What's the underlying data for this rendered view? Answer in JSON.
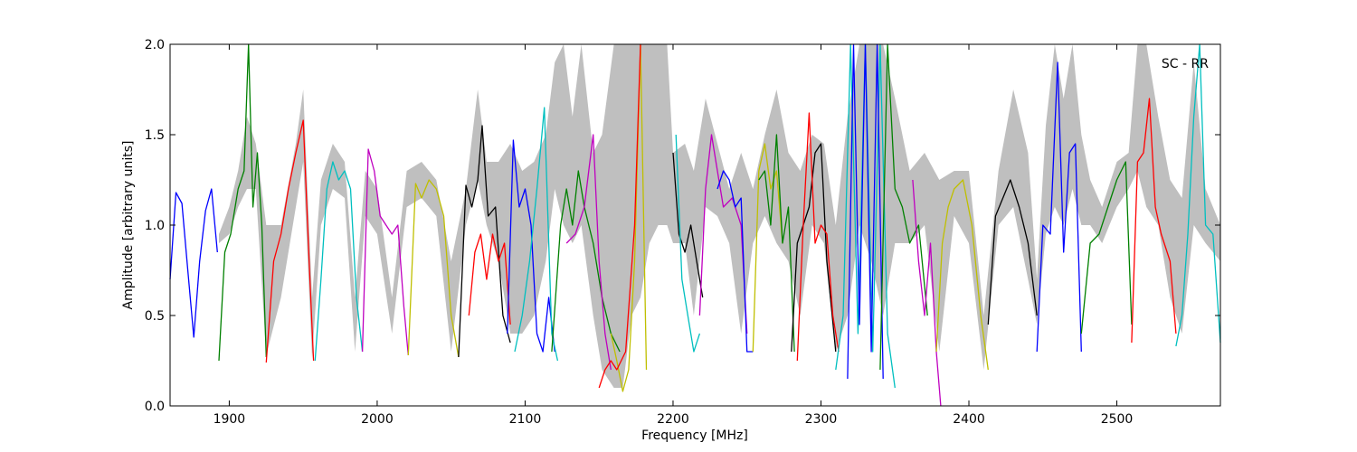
{
  "chart_data": {
    "type": "line",
    "title": "",
    "annotation": "SC - RR",
    "xlabel": "Frequency [MHz]",
    "ylabel": "Amplitude [arbitrary units]",
    "xlim": [
      1860,
      2570
    ],
    "ylim": [
      0.0,
      2.0
    ],
    "xticks": [
      1900,
      2000,
      2100,
      2200,
      2300,
      2400,
      2500
    ],
    "xtick_labels": [
      "1900",
      "2000",
      "2100",
      "2200",
      "2300",
      "2400",
      "2500"
    ],
    "yticks": [
      0.0,
      0.5,
      1.0,
      1.5,
      2.0
    ],
    "ytick_labels": [
      "0.0",
      "0.5",
      "1.0",
      "1.5",
      "2.0"
    ],
    "grid": false,
    "legend": "none",
    "envelope": {
      "color": "#bfbfbf",
      "x": [
        1893,
        1900,
        1906,
        1912,
        1918,
        1925,
        1935,
        1945,
        1950,
        1956,
        1962,
        1970,
        1978,
        1985,
        1992,
        2000,
        2010,
        2020,
        2030,
        2040,
        2050,
        2060,
        2068,
        2074,
        2082,
        2090,
        2098,
        2106,
        2114,
        2120,
        2126,
        2132,
        2138,
        2146,
        2152,
        2160,
        2166,
        2172,
        2178,
        2184,
        2190,
        2196,
        2200,
        2208,
        2214,
        2222,
        2230,
        2238,
        2246,
        2254,
        2262,
        2270,
        2278,
        2286,
        2294,
        2302,
        2310,
        2318,
        2326,
        2334,
        2342,
        2350,
        2360,
        2370,
        2380,
        2390,
        2400,
        2410,
        2420,
        2430,
        2440,
        2446,
        2452,
        2458,
        2464,
        2470,
        2476,
        2482,
        2490,
        2500,
        2508,
        2514,
        2520,
        2528,
        2536,
        2544,
        2552,
        2560,
        2570
      ],
      "upper": [
        0.95,
        1.1,
        1.3,
        1.6,
        1.45,
        1.0,
        1.0,
        1.45,
        1.75,
        0.6,
        1.25,
        1.45,
        1.35,
        0.6,
        1.3,
        1.2,
        0.6,
        1.3,
        1.35,
        1.25,
        0.8,
        1.2,
        1.75,
        1.35,
        1.35,
        1.45,
        1.3,
        1.35,
        1.5,
        1.9,
        2.0,
        1.6,
        2.0,
        1.4,
        1.5,
        2.0,
        2.0,
        2.0,
        2.0,
        2.0,
        2.0,
        2.0,
        1.4,
        1.45,
        1.3,
        1.7,
        1.45,
        1.2,
        1.4,
        1.2,
        1.5,
        1.75,
        1.4,
        1.3,
        1.5,
        1.45,
        1.0,
        1.6,
        2.0,
        2.0,
        2.0,
        1.7,
        1.3,
        1.4,
        1.25,
        1.3,
        1.3,
        0.5,
        1.3,
        1.75,
        1.4,
        0.7,
        1.55,
        2.0,
        1.7,
        2.0,
        1.5,
        1.25,
        1.1,
        1.35,
        1.4,
        2.0,
        2.0,
        1.6,
        1.25,
        1.15,
        1.9,
        1.2,
        1.0
      ],
      "lower": [
        0.9,
        0.95,
        1.1,
        1.2,
        1.2,
        0.28,
        0.6,
        1.1,
        1.35,
        0.26,
        1.0,
        1.2,
        1.15,
        0.3,
        1.05,
        0.95,
        0.4,
        1.1,
        1.15,
        1.05,
        0.3,
        1.0,
        1.25,
        1.0,
        0.8,
        0.4,
        0.4,
        0.5,
        0.8,
        1.2,
        1.0,
        0.9,
        1.0,
        0.5,
        0.2,
        0.1,
        0.1,
        0.5,
        0.6,
        0.9,
        1.0,
        1.0,
        0.9,
        0.9,
        0.5,
        1.1,
        1.05,
        0.9,
        0.4,
        0.9,
        1.05,
        0.9,
        0.8,
        0.5,
        1.0,
        0.9,
        0.3,
        0.5,
        1.0,
        0.8,
        0.5,
        0.9,
        0.9,
        1.0,
        0.3,
        1.05,
        0.9,
        0.2,
        1.0,
        1.1,
        0.7,
        0.45,
        0.95,
        1.1,
        1.0,
        1.2,
        1.0,
        1.0,
        0.9,
        1.1,
        1.2,
        1.3,
        1.1,
        1.0,
        0.6,
        0.4,
        1.0,
        0.9,
        0.8
      ]
    },
    "series": [
      {
        "color": "#0000ff",
        "x": [
          1860,
          1864,
          1868,
          1872,
          1876,
          1880,
          1884,
          1888,
          1892
        ],
        "y": [
          0.7,
          1.18,
          1.12,
          0.75,
          0.38,
          0.8,
          1.08,
          1.2,
          0.85
        ]
      },
      {
        "color": "#008000",
        "x": [
          1893,
          1897,
          1901,
          1906,
          1910,
          1913,
          1916,
          1919,
          1922,
          1925
        ],
        "y": [
          0.25,
          0.85,
          0.95,
          1.2,
          1.3,
          2.0,
          1.1,
          1.4,
          1.0,
          0.27
        ]
      },
      {
        "color": "#ff0000",
        "x": [
          1925,
          1930,
          1935,
          1940,
          1945,
          1950,
          1954,
          1957
        ],
        "y": [
          0.24,
          0.8,
          0.95,
          1.2,
          1.4,
          1.58,
          0.8,
          0.25
        ]
      },
      {
        "color": "#00bfbf",
        "x": [
          1958,
          1962,
          1966,
          1970,
          1974,
          1978,
          1982,
          1986,
          1990
        ],
        "y": [
          0.25,
          0.7,
          1.2,
          1.35,
          1.25,
          1.3,
          1.2,
          0.6,
          0.3
        ]
      },
      {
        "color": "#bf00bf",
        "x": [
          1990,
          1994,
          1998,
          2002,
          2006,
          2010,
          2014,
          2018,
          2021
        ],
        "y": [
          0.3,
          1.42,
          1.3,
          1.05,
          1.0,
          0.95,
          1.0,
          0.55,
          0.28
        ]
      },
      {
        "color": "#bfbf00",
        "x": [
          2021,
          2026,
          2030,
          2035,
          2040,
          2045,
          2050,
          2055
        ],
        "y": [
          0.28,
          1.23,
          1.15,
          1.25,
          1.2,
          1.05,
          0.5,
          0.27
        ]
      },
      {
        "color": "#000000",
        "x": [
          2055,
          2060,
          2064,
          2068,
          2071,
          2075,
          2080,
          2085,
          2090
        ],
        "y": [
          0.27,
          1.22,
          1.1,
          1.25,
          1.55,
          1.05,
          1.1,
          0.5,
          0.35
        ]
      },
      {
        "color": "#ff0000",
        "x": [
          2062,
          2066,
          2070,
          2074,
          2078,
          2082,
          2086,
          2090
        ],
        "y": [
          0.5,
          0.85,
          0.95,
          0.7,
          0.95,
          0.8,
          0.9,
          0.45
        ]
      },
      {
        "color": "#0000ff",
        "x": [
          2088,
          2092,
          2096,
          2100,
          2104,
          2108,
          2112,
          2116,
          2120
        ],
        "y": [
          0.4,
          1.47,
          1.1,
          1.2,
          1.0,
          0.4,
          0.3,
          0.6,
          0.3
        ]
      },
      {
        "color": "#00bfbf",
        "x": [
          2093,
          2098,
          2103,
          2108,
          2113,
          2118,
          2122
        ],
        "y": [
          0.3,
          0.5,
          0.8,
          1.2,
          1.65,
          0.4,
          0.25
        ]
      },
      {
        "color": "#008000",
        "x": [
          2118,
          2124,
          2128,
          2132,
          2136,
          2140,
          2146,
          2152,
          2158,
          2164
        ],
        "y": [
          0.3,
          1.0,
          1.2,
          1.0,
          1.3,
          1.1,
          0.9,
          0.6,
          0.4,
          0.3
        ]
      },
      {
        "color": "#bf00bf",
        "x": [
          2128,
          2134,
          2140,
          2146,
          2150,
          2154,
          2158
        ],
        "y": [
          0.9,
          0.95,
          1.1,
          1.5,
          0.8,
          0.4,
          0.2
        ]
      },
      {
        "color": "#bfbf00",
        "x": [
          2158,
          2162,
          2166,
          2170,
          2174,
          2178,
          2182
        ],
        "y": [
          0.4,
          0.25,
          0.08,
          0.2,
          0.8,
          2.0,
          0.2
        ]
      },
      {
        "color": "#ff0000",
        "x": [
          2150,
          2154,
          2158,
          2162,
          2168,
          2174,
          2178
        ],
        "y": [
          0.1,
          0.2,
          0.25,
          0.2,
          0.3,
          1.0,
          2.0
        ]
      },
      {
        "color": "#000000",
        "x": [
          2200,
          2204,
          2208,
          2212,
          2216,
          2220
        ],
        "y": [
          1.4,
          0.95,
          0.85,
          1.0,
          0.8,
          0.6
        ]
      },
      {
        "color": "#00bfbf",
        "x": [
          2202,
          2206,
          2210,
          2214,
          2218
        ],
        "y": [
          1.5,
          0.7,
          0.5,
          0.3,
          0.4
        ]
      },
      {
        "color": "#bf00bf",
        "x": [
          2218,
          2222,
          2226,
          2230,
          2234,
          2240,
          2246,
          2250
        ],
        "y": [
          0.5,
          1.2,
          1.5,
          1.3,
          1.1,
          1.15,
          1.0,
          0.4
        ]
      },
      {
        "color": "#0000ff",
        "x": [
          2230,
          2234,
          2238,
          2242,
          2246,
          2250,
          2254
        ],
        "y": [
          1.2,
          1.3,
          1.25,
          1.1,
          1.15,
          0.3,
          0.3
        ]
      },
      {
        "color": "#bfbf00",
        "x": [
          2254,
          2258,
          2262,
          2266,
          2270,
          2274
        ],
        "y": [
          0.3,
          1.3,
          1.45,
          1.2,
          1.3,
          0.9
        ]
      },
      {
        "color": "#008000",
        "x": [
          2258,
          2262,
          2266,
          2270,
          2274,
          2278,
          2282
        ],
        "y": [
          1.25,
          1.3,
          1.0,
          1.5,
          0.9,
          1.1,
          0.3
        ]
      },
      {
        "color": "#000000",
        "x": [
          2280,
          2284,
          2288,
          2292,
          2296,
          2300,
          2304,
          2310
        ],
        "y": [
          0.3,
          0.9,
          1.0,
          1.1,
          1.4,
          1.45,
          0.8,
          0.3
        ]
      },
      {
        "color": "#ff0000",
        "x": [
          2284,
          2288,
          2292,
          2296,
          2300,
          2304,
          2308,
          2312
        ],
        "y": [
          0.25,
          1.0,
          1.62,
          0.9,
          1.0,
          0.95,
          0.5,
          0.3
        ]
      },
      {
        "color": "#00bfbf",
        "x": [
          2310,
          2315,
          2320,
          2325,
          2330,
          2335,
          2340,
          2345,
          2350
        ],
        "y": [
          0.2,
          0.5,
          2.0,
          0.4,
          2.0,
          0.3,
          2.0,
          0.4,
          0.1
        ]
      },
      {
        "color": "#0000ff",
        "x": [
          2318,
          2322,
          2326,
          2330,
          2334,
          2338,
          2342
        ],
        "y": [
          0.15,
          2.0,
          0.45,
          2.0,
          0.3,
          2.0,
          0.15
        ]
      },
      {
        "color": "#008000",
        "x": [
          2340,
          2345,
          2350,
          2355,
          2360,
          2366,
          2372
        ],
        "y": [
          0.2,
          2.0,
          1.2,
          1.1,
          0.9,
          1.0,
          0.5
        ]
      },
      {
        "color": "#bf00bf",
        "x": [
          2362,
          2366,
          2370,
          2374,
          2378,
          2381
        ],
        "y": [
          1.25,
          0.8,
          0.5,
          0.9,
          0.3,
          0.0
        ]
      },
      {
        "color": "#bfbf00",
        "x": [
          2378,
          2382,
          2386,
          2390,
          2396,
          2402,
          2408,
          2413
        ],
        "y": [
          0.3,
          0.9,
          1.1,
          1.2,
          1.25,
          1.0,
          0.5,
          0.2
        ]
      },
      {
        "color": "#000000",
        "x": [
          2413,
          2418,
          2423,
          2428,
          2434,
          2440,
          2446
        ],
        "y": [
          0.45,
          1.05,
          1.15,
          1.25,
          1.1,
          0.9,
          0.5
        ]
      },
      {
        "color": "#0000ff",
        "x": [
          2446,
          2450,
          2455,
          2460,
          2464,
          2468,
          2472,
          2476
        ],
        "y": [
          0.3,
          1.0,
          0.95,
          1.9,
          0.85,
          1.4,
          1.45,
          0.3
        ]
      },
      {
        "color": "#008000",
        "x": [
          2476,
          2482,
          2488,
          2494,
          2500,
          2506,
          2510
        ],
        "y": [
          0.4,
          0.9,
          0.95,
          1.1,
          1.25,
          1.35,
          0.45
        ]
      },
      {
        "color": "#ff0000",
        "x": [
          2510,
          2514,
          2518,
          2522,
          2526,
          2530,
          2536,
          2540
        ],
        "y": [
          0.35,
          1.35,
          1.4,
          1.7,
          1.1,
          0.95,
          0.8,
          0.4
        ]
      },
      {
        "color": "#00bfbf",
        "x": [
          2540,
          2544,
          2548,
          2552,
          2556,
          2560,
          2565,
          2570
        ],
        "y": [
          0.33,
          0.5,
          0.95,
          1.6,
          2.0,
          1.0,
          0.95,
          0.35
        ]
      }
    ]
  }
}
